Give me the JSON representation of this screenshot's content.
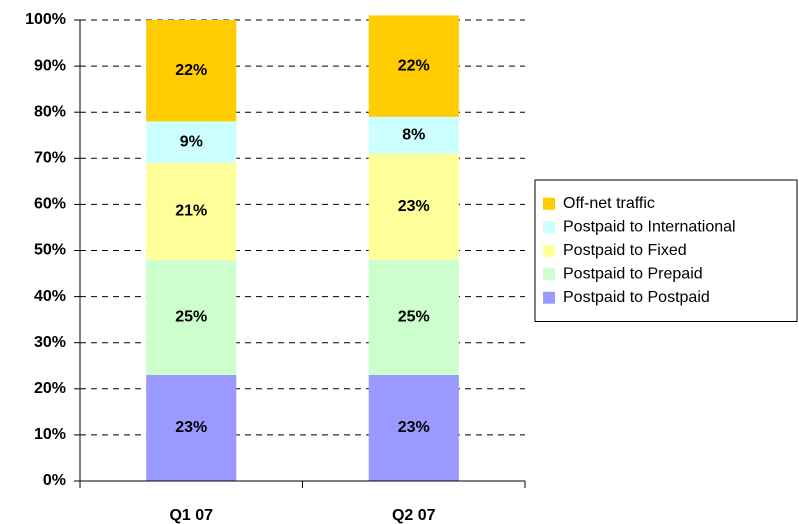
{
  "chart_data": {
    "type": "stacked_bar",
    "categories": [
      "Q1 07",
      "Q2 07"
    ],
    "series": [
      {
        "name": "Postpaid to Postpaid",
        "color": "#9999ff",
        "values": [
          23,
          23
        ],
        "value_labels": [
          "23%",
          "23%"
        ]
      },
      {
        "name": "Postpaid to Prepaid",
        "color": "#ccffcc",
        "values": [
          25,
          25
        ],
        "value_labels": [
          "25%",
          "25%"
        ]
      },
      {
        "name": "Postpaid to Fixed",
        "color": "#ffff99",
        "values": [
          21,
          23
        ],
        "value_labels": [
          "21%",
          "23%"
        ]
      },
      {
        "name": "Postpaid to International",
        "color": "#ccffff",
        "values": [
          9,
          8
        ],
        "value_labels": [
          "9%",
          "8%"
        ]
      },
      {
        "name": "Off-net traffic",
        "color": "#ffcc00",
        "values": [
          22,
          22
        ],
        "value_labels": [
          "22%",
          "22%"
        ]
      }
    ],
    "ylim": [
      0,
      100
    ],
    "yticks": [
      {
        "value": 0,
        "label": "0%"
      },
      {
        "value": 10,
        "label": "10%"
      },
      {
        "value": 20,
        "label": "20%"
      },
      {
        "value": 30,
        "label": "30%"
      },
      {
        "value": 40,
        "label": "40%"
      },
      {
        "value": 50,
        "label": "50%"
      },
      {
        "value": 60,
        "label": "60%"
      },
      {
        "value": 70,
        "label": "70%"
      },
      {
        "value": 80,
        "label": "80%"
      },
      {
        "value": 90,
        "label": "90%"
      },
      {
        "value": 100,
        "label": "100%"
      }
    ],
    "grid": true,
    "legend": "right"
  }
}
